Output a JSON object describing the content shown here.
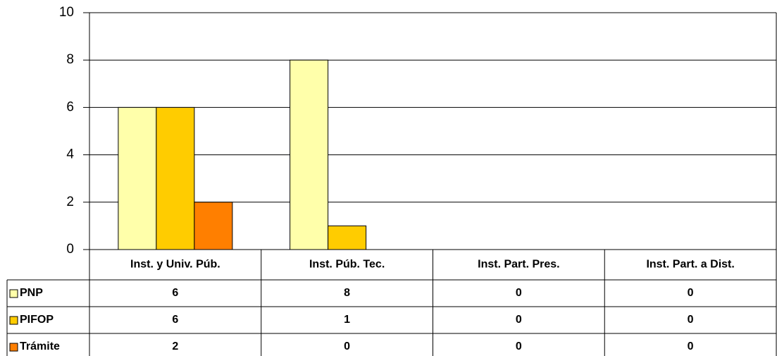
{
  "chart_data": {
    "type": "bar",
    "categories": [
      "Inst. y Univ. Púb.",
      "Inst. Púb. Tec.",
      "Inst. Part. Pres.",
      "Inst. Part. a Dist."
    ],
    "series": [
      {
        "name": "PNP",
        "color": "#ffffaa",
        "values": [
          6,
          8,
          0,
          0
        ]
      },
      {
        "name": "PIFOP",
        "color": "#ffcc00",
        "values": [
          6,
          1,
          0,
          0
        ]
      },
      {
        "name": "Trámite",
        "color": "#ff7f00",
        "values": [
          2,
          0,
          0,
          0
        ]
      }
    ],
    "ylim": [
      0,
      10
    ],
    "yticks": [
      0,
      2,
      4,
      6,
      8,
      10
    ],
    "grid": true,
    "data_table": true
  }
}
